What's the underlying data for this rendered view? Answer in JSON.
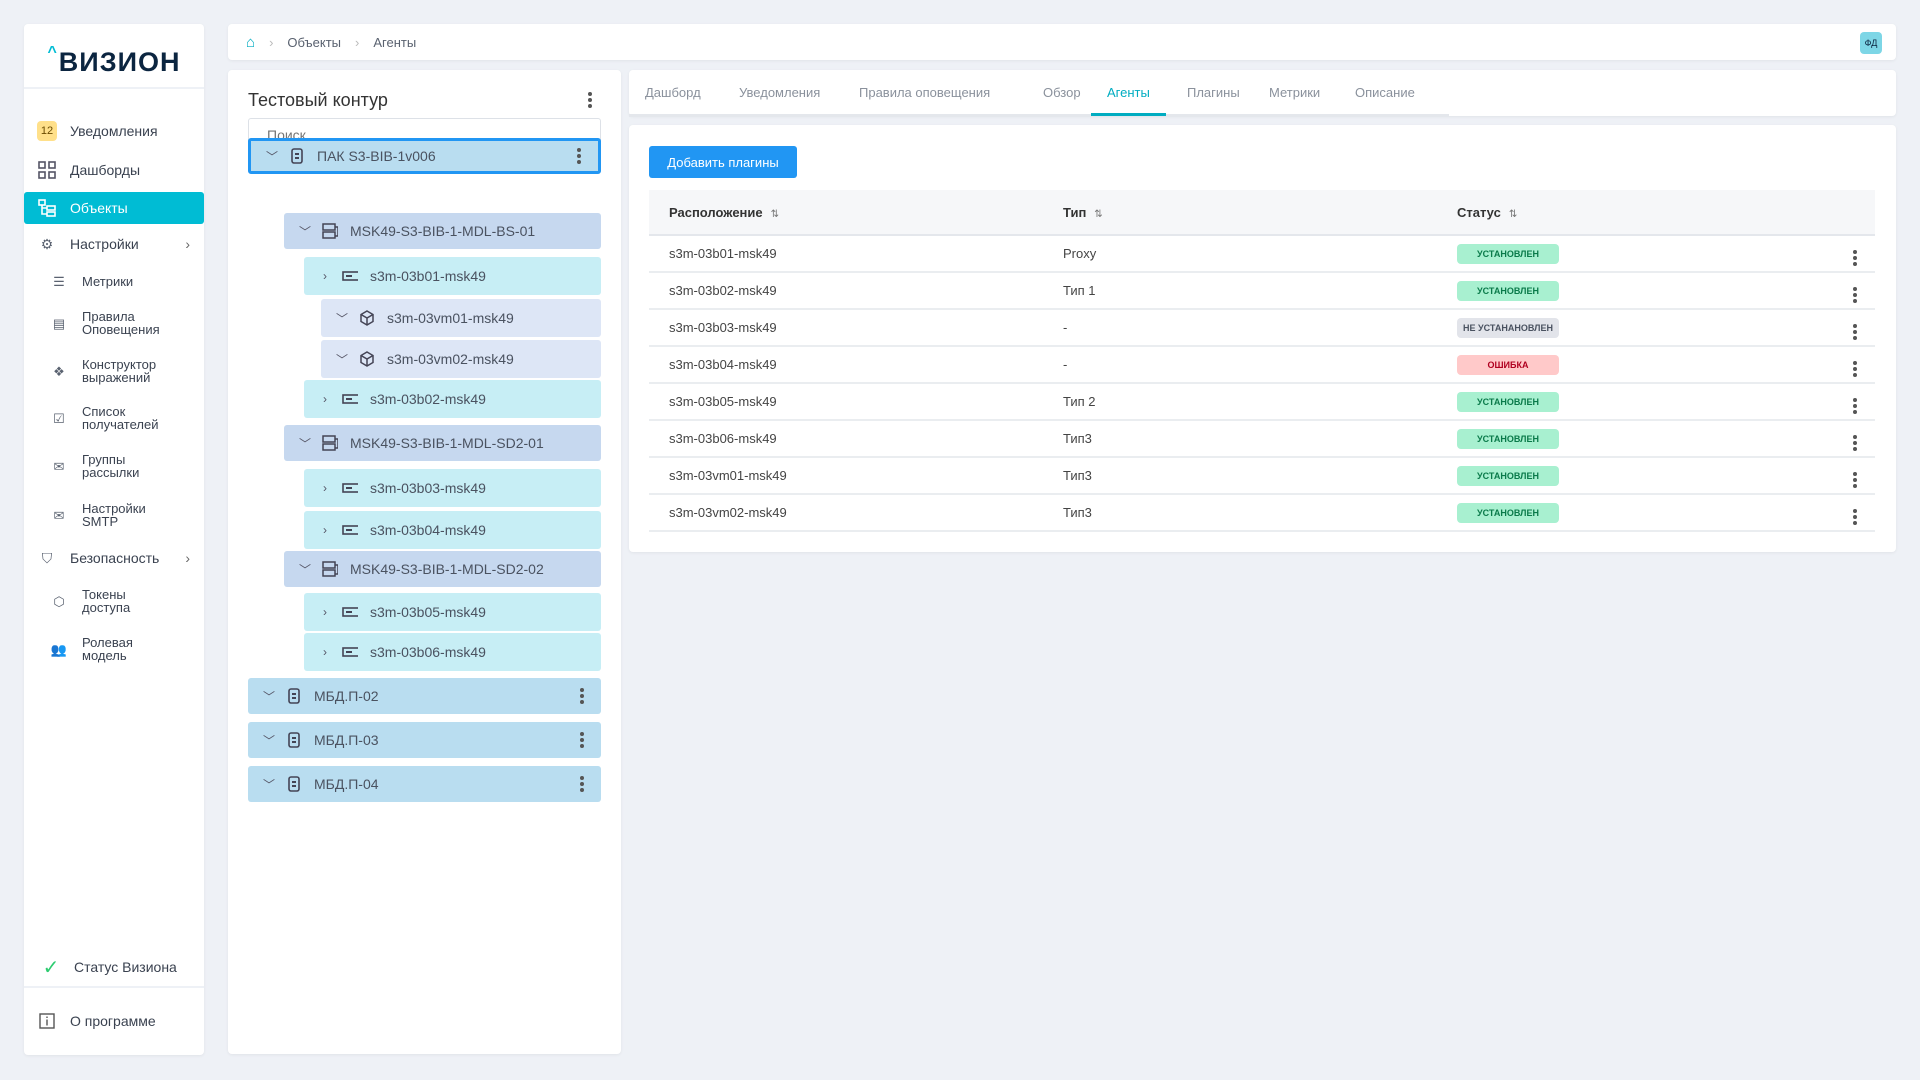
{
  "logo": "ВИЗИОН",
  "sidebar": {
    "notifications_count": "12",
    "items": [
      {
        "label": "Уведомления",
        "icon": "bell-icon"
      },
      {
        "label": "Дашборды",
        "icon": "grid-icon"
      },
      {
        "label": "Объекты",
        "icon": "tree-icon"
      },
      {
        "label": "Настройки",
        "icon": "gear-icon"
      },
      {
        "label": "Метрики",
        "icon": "database-icon"
      },
      {
        "label": "Правила Оповещения",
        "icon": "document-icon"
      },
      {
        "label": "Конструктор выражений",
        "icon": "diamond-icon"
      },
      {
        "label": "Список получателей",
        "icon": "recipients-icon"
      },
      {
        "label": "Группы рассылки",
        "icon": "mail-group-icon"
      },
      {
        "label": "Настройки SMTP",
        "icon": "mail-settings-icon"
      },
      {
        "label": "Безопасность",
        "icon": "shield-icon"
      },
      {
        "label": "Токены доступа",
        "icon": "token-icon"
      },
      {
        "label": "Ролевая модель",
        "icon": "users-icon"
      }
    ],
    "status": "Статус Визиона",
    "about": "О программе"
  },
  "breadcrumb": [
    "Объекты",
    "Агенты"
  ],
  "user_initials": "ФД",
  "tree": {
    "title": "Тестовый контур",
    "search_placeholder": "Поиск",
    "nodes": [
      {
        "label": "ПАК S3-BIB-1v006",
        "level": 0,
        "expanded": true
      },
      {
        "label": "MSK49-S3-BIB-1-MDL-BS-01",
        "level": 1,
        "expanded": true
      },
      {
        "label": "s3m-03b01-msk49",
        "level": 2,
        "expanded": false
      },
      {
        "label": "s3m-03vm01-msk49",
        "level": 3,
        "expanded": true
      },
      {
        "label": "s3m-03vm02-msk49",
        "level": 3,
        "expanded": true
      },
      {
        "label": "s3m-03b02-msk49",
        "level": 2,
        "expanded": false
      },
      {
        "label": "MSK49-S3-BIB-1-MDL-SD2-01",
        "level": 1,
        "expanded": true
      },
      {
        "label": "s3m-03b03-msk49",
        "level": 2,
        "expanded": false
      },
      {
        "label": "s3m-03b04-msk49",
        "level": 2,
        "expanded": false
      },
      {
        "label": "MSK49-S3-BIB-1-MDL-SD2-02",
        "level": 1,
        "expanded": true
      },
      {
        "label": "s3m-03b05-msk49",
        "level": 2,
        "expanded": false
      },
      {
        "label": "s3m-03b06-msk49",
        "level": 2,
        "expanded": false
      },
      {
        "label": "МБД.П-02",
        "level": 0,
        "expanded": true
      },
      {
        "label": "МБД.П-03",
        "level": 0,
        "expanded": true
      },
      {
        "label": "МБД.П-04",
        "level": 0,
        "expanded": true
      }
    ]
  },
  "tabs": [
    "Дашборд",
    "Уведомления",
    "Правила оповещения",
    "Обзор",
    "Агенты",
    "Плагины",
    "Метрики",
    "Описание"
  ],
  "active_tab": "Агенты",
  "content": {
    "add_button": "Добавить плагины",
    "columns": [
      "Расположение",
      "Тип",
      "Статус"
    ],
    "sort_icon": "⇅",
    "rows": [
      {
        "location": "s3m-03b01-msk49",
        "type": "Proxy",
        "status": "УСТАНОВЛЕН",
        "kind": "ok"
      },
      {
        "location": "s3m-03b02-msk49",
        "type": "Тип 1",
        "status": "УСТАНОВЛЕН",
        "kind": "ok"
      },
      {
        "location": "s3m-03b03-msk49",
        "type": "-",
        "status": "НЕ УСТАНАНОВЛЕН",
        "kind": "none"
      },
      {
        "location": "s3m-03b04-msk49",
        "type": "-",
        "status": "ОШИБКА",
        "kind": "error"
      },
      {
        "location": "s3m-03b05-msk49",
        "type": "Тип 2",
        "status": "УСТАНОВЛЕН",
        "kind": "ok"
      },
      {
        "location": "s3m-03b06-msk49",
        "type": "Тип3",
        "status": "УСТАНОВЛЕН",
        "kind": "ok"
      },
      {
        "location": "s3m-03vm01-msk49",
        "type": "Тип3",
        "status": "УСТАНОВЛЕН",
        "kind": "ok"
      },
      {
        "location": "s3m-03vm02-msk49",
        "type": "Тип3",
        "status": "УСТАНОВЛЕН",
        "kind": "ok"
      }
    ]
  },
  "colors": {
    "accent": "#00bcd4",
    "primary": "#2196f3",
    "ok_bg": "#a8f0d0",
    "ok_fg": "#0a7a4a",
    "none_bg": "#e2e4ea",
    "none_fg": "#4a5260",
    "error_bg": "#ffc9c9",
    "error_fg": "#b00020"
  }
}
